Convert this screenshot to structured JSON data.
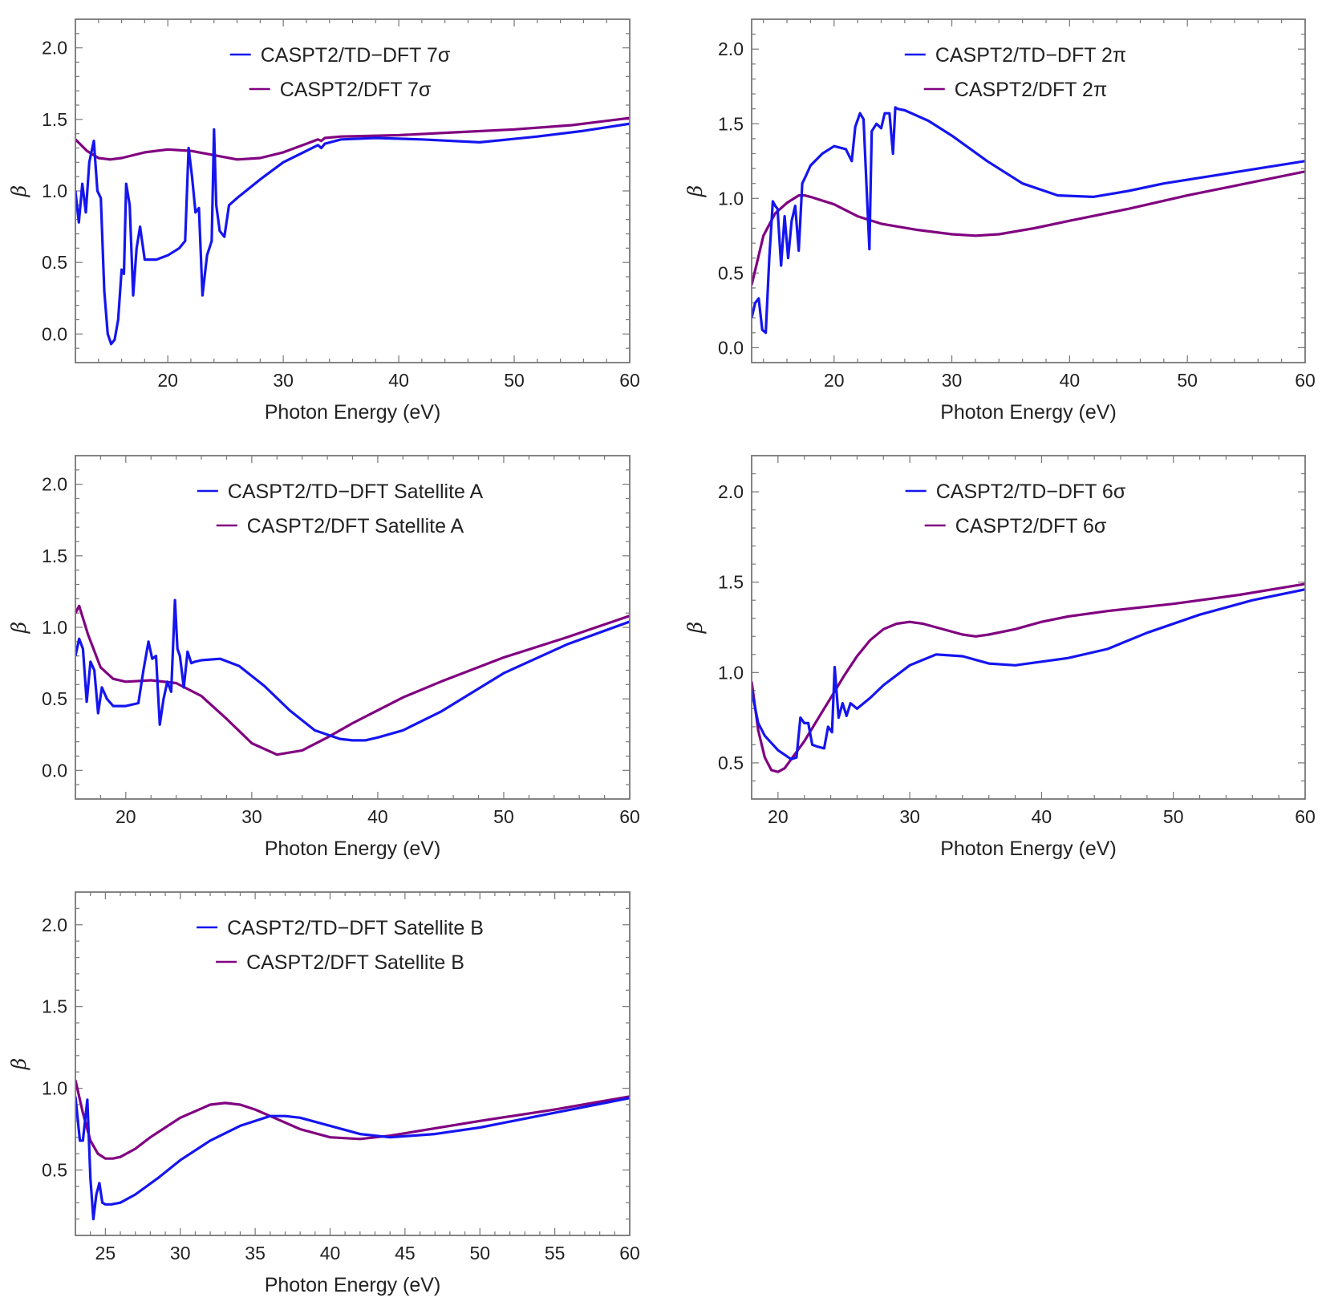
{
  "colors": {
    "tddft": "#1515f0",
    "dft": "#800080",
    "frame": "#777777",
    "text": "#222222"
  },
  "chart_data": [
    {
      "type": "line",
      "xlabel": "Photon Energy (eV)",
      "ylabel": "β",
      "xlim": [
        12,
        60
      ],
      "ylim": [
        -0.2,
        2.2
      ],
      "xticks": [
        20,
        30,
        40,
        50,
        60
      ],
      "xtick_labels": [
        "20",
        "30",
        "40",
        "50",
        "60"
      ],
      "yticks": [
        0,
        0.5,
        1,
        1.5,
        2
      ],
      "ytick_labels": [
        "0.0",
        "0.5",
        "1.0",
        "1.5",
        "2.0"
      ],
      "series": [
        {
          "name": "CASPT2/TD−DFT 7σ",
          "color": "#1515f0",
          "x": [
            12,
            12.3,
            12.6,
            12.9,
            13.2,
            13.6,
            13.9,
            14.2,
            14.5,
            14.8,
            15.1,
            15.4,
            15.7,
            16,
            16.2,
            16.4,
            16.7,
            17,
            17.3,
            17.6,
            18,
            19,
            20,
            21,
            21.5,
            21.8,
            22.1,
            22.4,
            22.7,
            23,
            23.4,
            23.8,
            24,
            24.2,
            24.5,
            24.9,
            25.3,
            26,
            28,
            30,
            32,
            33,
            33.3,
            33.6,
            35,
            38,
            42,
            47,
            52,
            56,
            60
          ],
          "y": [
            1.0,
            0.78,
            1.05,
            0.85,
            1.2,
            1.35,
            1.0,
            0.95,
            0.3,
            0.0,
            -0.07,
            -0.04,
            0.1,
            0.45,
            0.42,
            1.05,
            0.9,
            0.27,
            0.6,
            0.75,
            0.52,
            0.52,
            0.55,
            0.6,
            0.65,
            1.3,
            1.1,
            0.85,
            0.88,
            0.27,
            0.55,
            0.65,
            1.43,
            0.9,
            0.72,
            0.68,
            0.9,
            0.95,
            1.08,
            1.2,
            1.28,
            1.32,
            1.3,
            1.33,
            1.36,
            1.37,
            1.36,
            1.34,
            1.38,
            1.42,
            1.47
          ]
        },
        {
          "name": "CASPT2/DFT 7σ",
          "color": "#800080",
          "x": [
            12,
            13,
            14,
            15,
            16,
            18,
            20,
            22,
            24,
            26,
            28,
            30,
            32,
            33,
            33.3,
            33.6,
            35,
            40,
            45,
            50,
            55,
            60
          ],
          "y": [
            1.36,
            1.28,
            1.23,
            1.22,
            1.23,
            1.27,
            1.29,
            1.28,
            1.25,
            1.22,
            1.23,
            1.27,
            1.33,
            1.36,
            1.35,
            1.37,
            1.38,
            1.39,
            1.41,
            1.43,
            1.46,
            1.51
          ]
        }
      ]
    },
    {
      "type": "line",
      "xlabel": "Photon Energy (eV)",
      "ylabel": "β",
      "xlim": [
        13,
        60
      ],
      "ylim": [
        -0.1,
        2.2
      ],
      "xticks": [
        20,
        30,
        40,
        50,
        60
      ],
      "xtick_labels": [
        "20",
        "30",
        "40",
        "50",
        "60"
      ],
      "yticks": [
        0,
        0.5,
        1,
        1.5,
        2
      ],
      "ytick_labels": [
        "0.0",
        "0.5",
        "1.0",
        "1.5",
        "2.0"
      ],
      "series": [
        {
          "name": "CASPT2/TD−DFT 2π",
          "color": "#1515f0",
          "x": [
            13,
            13.3,
            13.6,
            13.9,
            14.2,
            14.5,
            14.8,
            15,
            15.2,
            15.5,
            15.8,
            16.1,
            16.4,
            16.7,
            17,
            17.3,
            17.6,
            18,
            19,
            20,
            21,
            21.5,
            21.8,
            22.2,
            22.5,
            22.8,
            23,
            23.2,
            23.6,
            24,
            24.3,
            24.7,
            25,
            25.2,
            25.4,
            26,
            28,
            30,
            33,
            36,
            39,
            42,
            45,
            48,
            52,
            56,
            60
          ],
          "y": [
            0.2,
            0.3,
            0.33,
            0.12,
            0.1,
            0.6,
            0.98,
            0.95,
            0.93,
            0.55,
            0.88,
            0.6,
            0.85,
            0.95,
            0.65,
            1.1,
            1.15,
            1.22,
            1.3,
            1.35,
            1.33,
            1.25,
            1.48,
            1.57,
            1.53,
            1.0,
            0.66,
            1.45,
            1.5,
            1.47,
            1.57,
            1.57,
            1.3,
            1.61,
            1.6,
            1.59,
            1.52,
            1.42,
            1.25,
            1.1,
            1.02,
            1.01,
            1.05,
            1.1,
            1.15,
            1.2,
            1.25
          ]
        },
        {
          "name": "CASPT2/DFT 2π",
          "color": "#800080",
          "x": [
            13,
            14,
            15,
            16,
            17,
            17.5,
            18,
            20,
            22,
            24,
            27,
            30,
            32,
            34,
            37,
            40,
            45,
            50,
            55,
            60
          ],
          "y": [
            0.42,
            0.75,
            0.9,
            0.97,
            1.02,
            1.02,
            1.01,
            0.96,
            0.88,
            0.83,
            0.79,
            0.76,
            0.75,
            0.76,
            0.8,
            0.85,
            0.93,
            1.02,
            1.1,
            1.18
          ]
        }
      ]
    },
    {
      "type": "line",
      "xlabel": "Photon Energy (eV)",
      "ylabel": "β",
      "xlim": [
        16,
        60
      ],
      "ylim": [
        -0.2,
        2.2
      ],
      "xticks": [
        20,
        30,
        40,
        50,
        60
      ],
      "xtick_labels": [
        "20",
        "30",
        "40",
        "50",
        "60"
      ],
      "yticks": [
        0,
        0.5,
        1,
        1.5,
        2
      ],
      "ytick_labels": [
        "0.0",
        "0.5",
        "1.0",
        "1.5",
        "2.0"
      ],
      "series": [
        {
          "name": "CASPT2/TD−DFT Satellite A",
          "color": "#1515f0",
          "x": [
            16,
            16.3,
            16.6,
            16.9,
            17.2,
            17.5,
            17.8,
            18.1,
            18.5,
            19,
            20,
            21,
            21.4,
            21.8,
            22.1,
            22.4,
            22.7,
            23,
            23.3,
            23.6,
            23.9,
            24.1,
            24.3,
            24.6,
            24.9,
            25.2,
            25.5,
            26,
            27.5,
            29,
            31,
            33,
            35,
            37,
            38,
            39,
            40,
            42,
            45,
            50,
            55,
            60
          ],
          "y": [
            0.8,
            0.92,
            0.85,
            0.48,
            0.76,
            0.7,
            0.4,
            0.58,
            0.5,
            0.45,
            0.45,
            0.47,
            0.7,
            0.9,
            0.78,
            0.8,
            0.32,
            0.5,
            0.62,
            0.55,
            1.19,
            0.85,
            0.8,
            0.58,
            0.83,
            0.75,
            0.76,
            0.77,
            0.78,
            0.73,
            0.59,
            0.42,
            0.28,
            0.22,
            0.21,
            0.21,
            0.23,
            0.28,
            0.41,
            0.68,
            0.88,
            1.04
          ]
        },
        {
          "name": "CASPT2/DFT Satellite A",
          "color": "#800080",
          "x": [
            16,
            16.3,
            17,
            18,
            19,
            20,
            22,
            24,
            26,
            28,
            30,
            32,
            34,
            36,
            38,
            40,
            42,
            45,
            50,
            55,
            60
          ],
          "y": [
            1.1,
            1.15,
            0.95,
            0.72,
            0.64,
            0.62,
            0.63,
            0.61,
            0.52,
            0.36,
            0.19,
            0.11,
            0.14,
            0.23,
            0.33,
            0.42,
            0.51,
            0.62,
            0.79,
            0.93,
            1.08
          ]
        }
      ]
    },
    {
      "type": "line",
      "xlabel": "Photon Energy (eV)",
      "ylabel": "β",
      "xlim": [
        18,
        60
      ],
      "ylim": [
        0.3,
        2.2
      ],
      "xticks": [
        20,
        30,
        40,
        50,
        60
      ],
      "xtick_labels": [
        "20",
        "30",
        "40",
        "50",
        "60"
      ],
      "yticks": [
        0.5,
        1,
        1.5,
        2
      ],
      "ytick_labels": [
        "0.5",
        "1.0",
        "1.5",
        "2.0"
      ],
      "series": [
        {
          "name": "CASPT2/TD−DFT 6σ",
          "color": "#1515f0",
          "x": [
            18,
            18.5,
            19,
            20,
            21,
            21.4,
            21.7,
            22,
            22.3,
            22.6,
            23,
            23.5,
            23.8,
            24.1,
            24.3,
            24.6,
            24.9,
            25.2,
            25.5,
            26,
            27,
            28,
            30,
            32,
            34,
            36,
            38,
            40,
            42,
            45,
            48,
            52,
            56,
            60
          ],
          "y": [
            0.9,
            0.72,
            0.65,
            0.57,
            0.52,
            0.53,
            0.75,
            0.72,
            0.72,
            0.6,
            0.59,
            0.58,
            0.7,
            0.67,
            1.03,
            0.75,
            0.83,
            0.76,
            0.83,
            0.8,
            0.86,
            0.93,
            1.04,
            1.1,
            1.09,
            1.05,
            1.04,
            1.06,
            1.08,
            1.13,
            1.22,
            1.32,
            1.4,
            1.46
          ]
        },
        {
          "name": "CASPT2/DFT 6σ",
          "color": "#800080",
          "x": [
            18,
            18.5,
            19,
            19.5,
            20,
            20.5,
            21,
            22,
            23,
            24,
            25,
            26,
            27,
            28,
            29,
            30,
            31,
            32,
            34,
            35,
            36,
            38,
            40,
            42,
            45,
            50,
            55,
            60
          ],
          "y": [
            0.95,
            0.68,
            0.53,
            0.46,
            0.45,
            0.47,
            0.52,
            0.62,
            0.74,
            0.86,
            0.98,
            1.09,
            1.18,
            1.24,
            1.27,
            1.28,
            1.27,
            1.25,
            1.21,
            1.2,
            1.21,
            1.24,
            1.28,
            1.31,
            1.34,
            1.38,
            1.43,
            1.49
          ]
        }
      ]
    },
    {
      "type": "line",
      "xlabel": "Photon Energy (eV)",
      "ylabel": "β",
      "xlim": [
        23,
        60
      ],
      "ylim": [
        0.1,
        2.2
      ],
      "xticks": [
        25,
        30,
        35,
        40,
        45,
        50,
        55,
        60
      ],
      "xtick_labels": [
        "25",
        "30",
        "35",
        "40",
        "45",
        "50",
        "55",
        "60"
      ],
      "yticks": [
        0.5,
        1,
        1.5,
        2
      ],
      "ytick_labels": [
        "0.5",
        "1.0",
        "1.5",
        "2.0"
      ],
      "series": [
        {
          "name": "CASPT2/TD−DFT Satellite B",
          "color": "#1515f0",
          "x": [
            23,
            23.3,
            23.5,
            23.8,
            24,
            24.2,
            24.4,
            24.6,
            24.8,
            25,
            25.4,
            26,
            27,
            28.5,
            30,
            32,
            34,
            36,
            37,
            38,
            40,
            42,
            44,
            47,
            50,
            55,
            60
          ],
          "y": [
            0.95,
            0.68,
            0.68,
            0.93,
            0.45,
            0.2,
            0.35,
            0.42,
            0.3,
            0.29,
            0.29,
            0.3,
            0.35,
            0.45,
            0.56,
            0.68,
            0.77,
            0.83,
            0.83,
            0.82,
            0.77,
            0.72,
            0.7,
            0.72,
            0.76,
            0.85,
            0.94
          ]
        },
        {
          "name": "CASPT2/DFT Satellite B",
          "color": "#800080",
          "x": [
            23,
            23.5,
            24,
            24.5,
            25,
            25.5,
            26,
            27,
            28,
            30,
            32,
            33,
            34,
            35,
            36,
            38,
            40,
            42,
            44,
            46,
            50,
            55,
            60
          ],
          "y": [
            1.05,
            0.85,
            0.68,
            0.6,
            0.57,
            0.57,
            0.58,
            0.63,
            0.7,
            0.82,
            0.9,
            0.91,
            0.9,
            0.87,
            0.83,
            0.75,
            0.7,
            0.69,
            0.71,
            0.74,
            0.8,
            0.87,
            0.95
          ]
        }
      ]
    }
  ]
}
